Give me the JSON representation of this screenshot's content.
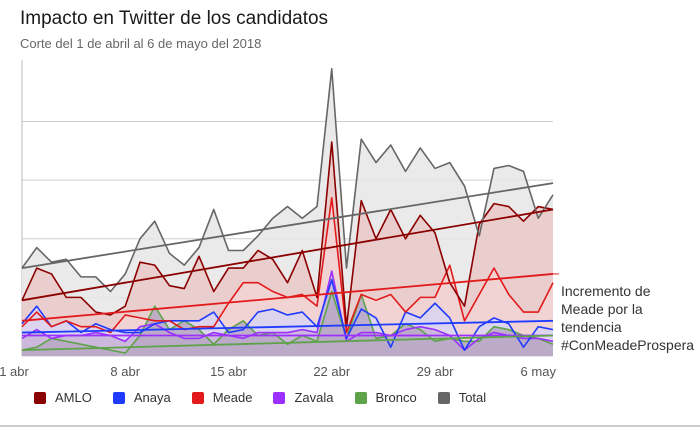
{
  "header": {
    "title": "Impacto en Twitter de los candidatos",
    "subtitle": "Corte del 1 de abril al 6 de mayo del 2018"
  },
  "annotation": {
    "lines": [
      "Incremento de",
      "Meade por la",
      "tendencia",
      "#ConMeadeProspera"
    ]
  },
  "chart_data": {
    "type": "area",
    "x": [
      "1 abr",
      "2 abr",
      "3 abr",
      "4 abr",
      "5 abr",
      "6 abr",
      "7 abr",
      "8 abr",
      "9 abr",
      "10 abr",
      "11 abr",
      "12 abr",
      "13 abr",
      "14 abr",
      "15 abr",
      "16 abr",
      "17 abr",
      "18 abr",
      "19 abr",
      "20 abr",
      "21 abr",
      "22 abr",
      "23 abr",
      "24 abr",
      "25 abr",
      "26 abr",
      "27 abr",
      "28 abr",
      "29 abr",
      "30 abr",
      "1 may",
      "2 may",
      "3 may",
      "4 may",
      "5 may",
      "6 may",
      "7 may"
    ],
    "x_tick_labels": [
      "1 abr",
      "8 abr",
      "15 abr",
      "22 abr",
      "29 abr",
      "6 may"
    ],
    "y_ticks": [
      0,
      1,
      2,
      3,
      4
    ],
    "y_tick_labels_shown": false,
    "ylim": [
      0,
      5.05
    ],
    "grid": true,
    "legend_position": "bottom",
    "series": [
      {
        "name": "Total",
        "color": "#666666",
        "fill": "#e6e6e6",
        "values": [
          1.5,
          1.85,
          1.6,
          1.65,
          1.35,
          1.35,
          1.1,
          1.4,
          2.0,
          2.3,
          1.75,
          1.55,
          1.85,
          2.5,
          1.8,
          1.8,
          2.05,
          2.35,
          2.55,
          2.35,
          2.55,
          4.9,
          1.5,
          3.7,
          3.3,
          3.6,
          3.15,
          3.55,
          3.2,
          3.3,
          2.9,
          2.05,
          3.2,
          3.25,
          3.15,
          2.35,
          2.75
        ],
        "trend": [
          1.5,
          2.95
        ]
      },
      {
        "name": "AMLO",
        "color": "#8b0000",
        "fill": "#eac8c8",
        "values": [
          0.95,
          1.5,
          1.4,
          1.0,
          1.0,
          0.75,
          0.7,
          0.85,
          1.6,
          1.55,
          1.2,
          1.15,
          1.7,
          1.1,
          1.5,
          1.5,
          1.8,
          1.65,
          1.25,
          1.8,
          1.0,
          3.65,
          0.5,
          2.65,
          2.0,
          2.5,
          2.0,
          2.4,
          2.1,
          1.25,
          0.85,
          2.25,
          2.6,
          2.55,
          2.3,
          2.55,
          2.5
        ],
        "trend": [
          0.95,
          2.5
        ]
      },
      {
        "name": "Meade",
        "color": "#e31a1c",
        "fill": "#f3d3d3",
        "values": [
          0.5,
          0.75,
          0.5,
          0.6,
          0.5,
          0.5,
          0.4,
          0.7,
          0.65,
          0.6,
          0.6,
          0.45,
          0.5,
          0.5,
          0.9,
          1.25,
          1.25,
          1.1,
          1.0,
          1.05,
          0.85,
          2.7,
          0.4,
          1.05,
          0.95,
          1.05,
          0.75,
          1.0,
          1.0,
          1.55,
          0.6,
          1.05,
          1.5,
          1.05,
          0.75,
          0.75,
          1.25
        ],
        "trend": [
          0.6,
          1.4
        ]
      },
      {
        "name": "Anaya",
        "color": "#1f3bff",
        "fill": "#d9d3f2",
        "values": [
          0.55,
          0.85,
          0.5,
          0.6,
          0.4,
          0.55,
          0.45,
          0.4,
          0.4,
          0.55,
          0.6,
          0.6,
          0.6,
          0.75,
          0.4,
          0.45,
          0.75,
          0.8,
          0.7,
          0.75,
          0.5,
          1.3,
          0.3,
          0.8,
          0.65,
          0.15,
          0.75,
          0.65,
          0.9,
          0.65,
          0.1,
          0.5,
          0.65,
          0.55,
          0.15,
          0.5,
          0.45
        ],
        "trend": [
          0.4,
          0.6
        ]
      },
      {
        "name": "Zavala",
        "color": "#9b30ff",
        "fill": "#c9b3d6",
        "values": [
          0.3,
          0.45,
          0.3,
          0.35,
          0.35,
          0.4,
          0.35,
          0.25,
          0.5,
          0.55,
          0.4,
          0.3,
          0.3,
          0.4,
          0.35,
          0.3,
          0.4,
          0.4,
          0.4,
          0.45,
          0.4,
          1.45,
          0.25,
          0.4,
          0.4,
          0.35,
          0.45,
          0.5,
          0.45,
          0.35,
          0.1,
          0.3,
          0.4,
          0.35,
          0.3,
          0.3,
          0.25
        ],
        "trend": [
          0.35,
          0.35
        ]
      },
      {
        "name": "Bronco",
        "color": "#5ea34a",
        "fill": "#b7a7c4",
        "values": [
          0.1,
          0.15,
          0.3,
          0.25,
          0.2,
          0.15,
          0.1,
          0.05,
          0.35,
          0.85,
          0.45,
          0.6,
          0.45,
          0.2,
          0.45,
          0.6,
          0.35,
          0.4,
          0.2,
          0.35,
          0.25,
          1.1,
          0.3,
          1.05,
          0.3,
          0.35,
          0.55,
          0.45,
          0.25,
          0.3,
          0.25,
          0.25,
          0.5,
          0.45,
          0.35,
          0.3,
          0.2
        ],
        "trend": [
          0.1,
          0.35
        ]
      }
    ]
  },
  "legend": [
    {
      "label": "AMLO",
      "color": "#8b0000"
    },
    {
      "label": "Anaya",
      "color": "#1f3bff"
    },
    {
      "label": "Meade",
      "color": "#e31a1c"
    },
    {
      "label": "Zavala",
      "color": "#9b30ff"
    },
    {
      "label": "Bronco",
      "color": "#5ea34a"
    },
    {
      "label": "Total",
      "color": "#666666"
    }
  ]
}
